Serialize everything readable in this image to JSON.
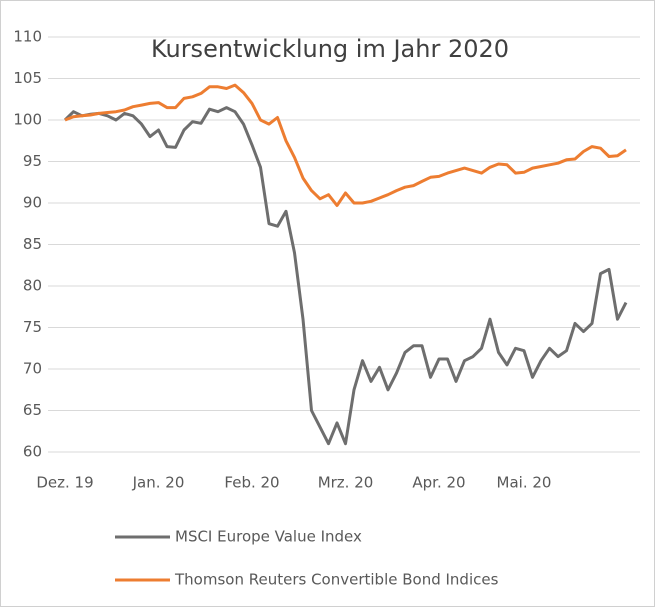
{
  "chart_data": {
    "type": "line",
    "title": "Kursentwicklung im Jahr 2020",
    "categories": [
      "Dez. 19",
      null,
      null,
      null,
      null,
      null,
      null,
      null,
      null,
      null,
      null,
      "Jan. 20",
      null,
      null,
      null,
      null,
      null,
      null,
      null,
      null,
      null,
      null,
      "Feb. 20",
      null,
      null,
      null,
      null,
      null,
      null,
      null,
      null,
      null,
      null,
      "Mrz. 20",
      null,
      null,
      null,
      null,
      null,
      null,
      null,
      null,
      null,
      null,
      "Apr. 20",
      null,
      null,
      null,
      null,
      null,
      null,
      null,
      null,
      null,
      "Mai. 20",
      null,
      null,
      null,
      null,
      null,
      null,
      null,
      null,
      null,
      null,
      null,
      null
    ],
    "series": [
      {
        "name": "MSCI Europe Value Index",
        "color": "#6e6e6e",
        "values": [
          100,
          101,
          100.5,
          100.7,
          100.8,
          100.5,
          100,
          100.8,
          100.5,
          99.5,
          98,
          98.8,
          96.8,
          96.7,
          98.8,
          99.8,
          99.6,
          101.3,
          101,
          101.5,
          101,
          99.5,
          97,
          94.3,
          87.5,
          87.2,
          89,
          84,
          76,
          65,
          63,
          61,
          63.5,
          61,
          67.5,
          71,
          68.5,
          70.2,
          67.5,
          69.5,
          72,
          72.8,
          72.8,
          69,
          71.2,
          71.2,
          68.5,
          71,
          71.5,
          72.5,
          76,
          72,
          70.5,
          72.5,
          72.2,
          69,
          71,
          72.5,
          71.5,
          72.2,
          75.5,
          74.5,
          75.5,
          81.5,
          82,
          76,
          78
        ]
      },
      {
        "name": "Thomson Reuters Convertible Bond Indices",
        "color": "#ed7d31",
        "values": [
          100,
          100.4,
          100.5,
          100.6,
          100.8,
          100.9,
          101,
          101.2,
          101.6,
          101.8,
          102,
          102.1,
          101.5,
          101.5,
          102.6,
          102.8,
          103.2,
          104,
          104,
          103.8,
          104.2,
          103.3,
          102,
          100,
          99.5,
          100.3,
          97.5,
          95.5,
          93,
          91.5,
          90.5,
          91,
          89.7,
          91.2,
          90,
          90,
          90.2,
          90.6,
          91,
          91.5,
          91.9,
          92.1,
          92.6,
          93.1,
          93.2,
          93.6,
          93.9,
          94.2,
          93.9,
          93.6,
          94.3,
          94.7,
          94.6,
          93.6,
          93.7,
          94.2,
          94.4,
          94.6,
          94.8,
          95.2,
          95.3,
          96.2,
          96.8,
          96.6,
          95.6,
          95.7,
          96.4
        ]
      }
    ],
    "ylim": [
      60,
      110
    ],
    "yticks": [
      60,
      65,
      70,
      75,
      80,
      85,
      90,
      95,
      100,
      105,
      110
    ],
    "grid": true,
    "legend": "bottom"
  }
}
